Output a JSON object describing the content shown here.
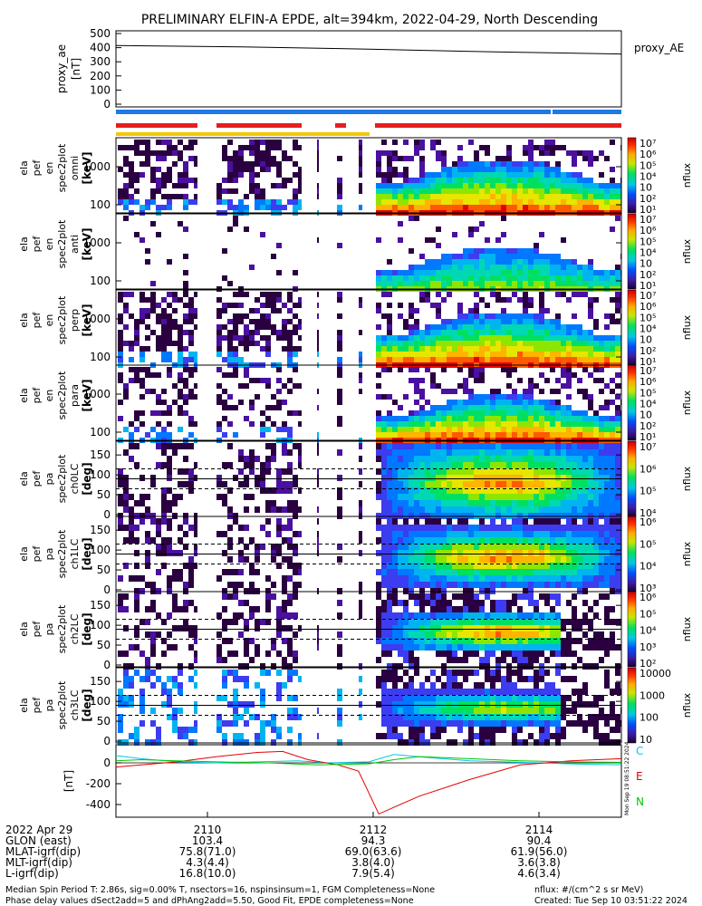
{
  "title": "PRELIMINARY ELFIN-A EPDE, alt=394km, 2022-04-29, North Descending",
  "colors": {
    "bar_blue": "#1e78e6",
    "bar_red": "#e61e1e",
    "bar_yellow": "#f5c800",
    "comp_C": "#00c8e6",
    "comp_E": "#e60000",
    "comp_N": "#00c800"
  },
  "proxy_ae": {
    "ylabel_main": "proxy_ae",
    "ylabel_unit": "[nT]",
    "legend": "proxy_AE",
    "ticks": [
      "500",
      "400",
      "300",
      "200",
      "100",
      "0"
    ]
  },
  "panels": [
    {
      "ylabel": [
        "ela",
        "pef",
        "en",
        "spec2plot",
        "omni",
        "[keV]"
      ],
      "ticks": [
        "1000",
        "100"
      ],
      "cbar": [
        "10⁷",
        "10⁶",
        "10⁵",
        "10⁴",
        "10⁳",
        "10²",
        "10¹"
      ],
      "cbar_label": "nflux"
    },
    {
      "ylabel": [
        "ela",
        "pef",
        "en",
        "spec2plot",
        "anti",
        "[keV]"
      ],
      "ticks": [
        "1000",
        "100"
      ],
      "cbar": [
        "10⁷",
        "10⁶",
        "10⁵",
        "10⁴",
        "10⁳",
        "10²",
        "10¹"
      ],
      "cbar_label": "nflux"
    },
    {
      "ylabel": [
        "ela",
        "pef",
        "en",
        "spec2plot",
        "perp",
        "[keV]"
      ],
      "ticks": [
        "1000",
        "100"
      ],
      "cbar": [
        "10⁷",
        "10⁶",
        "10⁵",
        "10⁴",
        "10⁳",
        "10²",
        "10¹"
      ],
      "cbar_label": "nflux"
    },
    {
      "ylabel": [
        "ela",
        "pef",
        "en",
        "spec2plot",
        "para",
        "[keV]"
      ],
      "ticks": [
        "1000",
        "100"
      ],
      "cbar": [
        "10⁷",
        "10⁶",
        "10⁵",
        "10⁴",
        "10⁳",
        "10²",
        "10¹"
      ],
      "cbar_label": "nflux"
    },
    {
      "ylabel": [
        "ela",
        "pef",
        "pa",
        "spec2plot",
        "ch0LC",
        "[deg]"
      ],
      "ticks": [
        "150",
        "100",
        "50",
        "0"
      ],
      "cbar": [
        "10⁷",
        "10⁶",
        "10⁵",
        "10⁴"
      ],
      "cbar_label": "nflux"
    },
    {
      "ylabel": [
        "ela",
        "pef",
        "pa",
        "spec2plot",
        "ch1LC",
        "[deg]"
      ],
      "ticks": [
        "150",
        "100",
        "50",
        "0"
      ],
      "cbar": [
        "10⁶",
        "10⁵",
        "10⁴",
        "10³"
      ],
      "cbar_label": "nflux"
    },
    {
      "ylabel": [
        "ela",
        "pef",
        "pa",
        "spec2plot",
        "ch2LC",
        "[deg]"
      ],
      "ticks": [
        "150",
        "100",
        "50",
        "0"
      ],
      "cbar": [
        "10⁶",
        "10⁵",
        "10⁴",
        "10³",
        "10²"
      ],
      "cbar_label": "nflux"
    },
    {
      "ylabel": [
        "ela",
        "pef",
        "pa",
        "spec2plot",
        "ch3LC",
        "[deg]"
      ],
      "ticks": [
        "150",
        "100",
        "50",
        "0"
      ],
      "cbar": [
        "10000",
        "1000",
        "100",
        "10"
      ],
      "cbar_label": "nflux"
    }
  ],
  "mag": {
    "ylabel": "[nT]",
    "ticks": [
      "0",
      "-200",
      "-400"
    ],
    "legend": [
      "C",
      "E",
      "N"
    ],
    "side_text": "Mon Sep 19 08:51:22 2024"
  },
  "footer": {
    "rows": [
      {
        "label": "2022 Apr 29",
        "values": [
          "2110",
          "2112",
          "2114"
        ]
      },
      {
        "label": "GLON (east)",
        "values": [
          "103.4",
          "94.3",
          "90.4"
        ]
      },
      {
        "label": "MLAT-igrf(dip)",
        "values": [
          "75.8(71.0)",
          "69.0(63.6)",
          "61.9(56.0)"
        ]
      },
      {
        "label": "MLT-igrf(dip)",
        "values": [
          "4.3(4.4)",
          "3.8(4.0)",
          "3.6(3.8)"
        ]
      },
      {
        "label": "L-igrf(dip)",
        "values": [
          "16.8(10.0)",
          "7.9(5.4)",
          "4.6(3.4)"
        ]
      }
    ],
    "note1": "Median Spin Period T: 2.86s, sig=0.00% T, nsectors=16, nspinsinsum=1, FGM Completeness=None",
    "note2": "Phase delay values dSect2add=5 and dPhAng2add=5.50, Good Fit, EPDE completeness=None",
    "units": "nflux: #/(cm^2 s sr MeV)",
    "created": "Created: Tue Sep 10 03:51:22 2024"
  },
  "chart_data": [
    {
      "type": "line",
      "title": "PRELIMINARY ELFIN-A EPDE, alt=394km, 2022-04-29, North Descending",
      "ylabel": "proxy_ae [nT]",
      "x": [
        "2108.5",
        "2110",
        "2112",
        "2114",
        "2115"
      ],
      "series": [
        {
          "name": "proxy_AE",
          "values": [
            415,
            405,
            390,
            370,
            355
          ]
        }
      ],
      "ylim": [
        0,
        500
      ]
    },
    {
      "type": "heatmap",
      "ylabel": "ela pef en spec2plot [keV]",
      "yscale": "log",
      "ylim": [
        60,
        7000
      ],
      "zlabel": "nflux",
      "zscale": "log",
      "zlim": [
        10,
        10000000
      ]
    },
    {
      "type": "heatmap",
      "ylabel": "ela pef pa spec2plot [deg]",
      "ylim": [
        0,
        180
      ],
      "zlabel": "nflux",
      "zscale": "log"
    },
    {
      "type": "line",
      "ylabel": "[nT]",
      "ylim": [
        -520,
        110
      ],
      "x_ticks": [
        "2110",
        "2112",
        "2114"
      ],
      "series": [
        {
          "name": "C",
          "x": [
            0,
            0.05,
            0.12,
            0.2,
            0.28,
            0.36,
            0.42,
            0.5,
            0.55,
            0.62,
            0.7,
            0.8,
            0.9,
            1.0
          ],
          "values": [
            70,
            40,
            10,
            0,
            10,
            20,
            0,
            10,
            80,
            50,
            20,
            5,
            -10,
            -20
          ]
        },
        {
          "name": "E",
          "x": [
            0,
            0.05,
            0.12,
            0.2,
            0.28,
            0.33,
            0.38,
            0.44,
            0.48,
            0.52,
            0.6,
            0.7,
            0.8,
            0.9,
            1.0
          ],
          "values": [
            -40,
            -20,
            10,
            60,
            100,
            110,
            30,
            -20,
            -80,
            -490,
            -320,
            -160,
            -20,
            20,
            40
          ]
        },
        {
          "name": "N",
          "x": [
            0,
            0.05,
            0.12,
            0.2,
            0.3,
            0.4,
            0.5,
            0.55,
            0.6,
            0.7,
            0.8,
            0.9,
            1.0
          ],
          "values": [
            20,
            30,
            20,
            10,
            0,
            -20,
            -10,
            30,
            60,
            40,
            20,
            10,
            5
          ]
        }
      ]
    }
  ]
}
